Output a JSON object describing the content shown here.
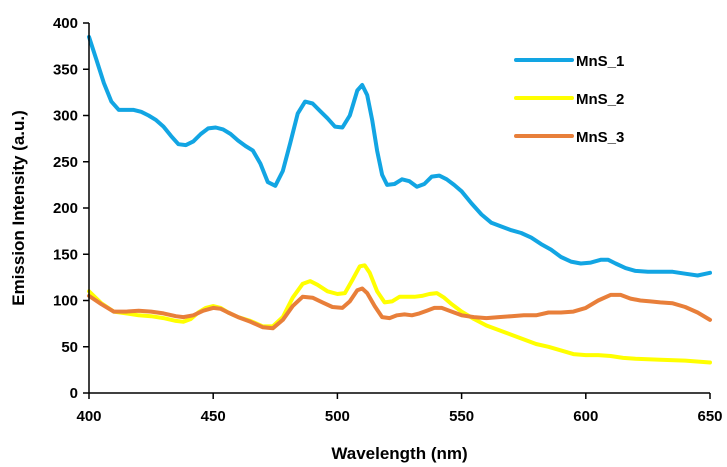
{
  "chart_data": {
    "type": "line",
    "title": "",
    "xlabel": "Wavelength (nm)",
    "ylabel": "Emission Intensity (a.u.)",
    "xlim": [
      400,
      650
    ],
    "ylim": [
      0,
      400
    ],
    "xticks": [
      400,
      450,
      500,
      550,
      600,
      650
    ],
    "yticks": [
      0,
      50,
      100,
      150,
      200,
      250,
      300,
      350,
      400
    ],
    "grid": false,
    "legend_position": "top-right",
    "series": [
      {
        "name": "MnS_1",
        "color": "#12A5E3",
        "points": [
          [
            400,
            385
          ],
          [
            403,
            360
          ],
          [
            406,
            335
          ],
          [
            409,
            315
          ],
          [
            412,
            306
          ],
          [
            415,
            306
          ],
          [
            418,
            306
          ],
          [
            421,
            304
          ],
          [
            424,
            300
          ],
          [
            427,
            295
          ],
          [
            430,
            288
          ],
          [
            433,
            278
          ],
          [
            436,
            269
          ],
          [
            439,
            268
          ],
          [
            442,
            272
          ],
          [
            445,
            280
          ],
          [
            448,
            286
          ],
          [
            451,
            287
          ],
          [
            454,
            285
          ],
          [
            457,
            280
          ],
          [
            460,
            273
          ],
          [
            463,
            267
          ],
          [
            466,
            262
          ],
          [
            469,
            248
          ],
          [
            472,
            228
          ],
          [
            475,
            224
          ],
          [
            478,
            240
          ],
          [
            481,
            270
          ],
          [
            484,
            302
          ],
          [
            487,
            315
          ],
          [
            490,
            313
          ],
          [
            493,
            305
          ],
          [
            496,
            297
          ],
          [
            499,
            288
          ],
          [
            502,
            287
          ],
          [
            505,
            300
          ],
          [
            508,
            327
          ],
          [
            510,
            333
          ],
          [
            512,
            322
          ],
          [
            514,
            295
          ],
          [
            516,
            262
          ],
          [
            518,
            236
          ],
          [
            520,
            225
          ],
          [
            523,
            226
          ],
          [
            526,
            231
          ],
          [
            529,
            229
          ],
          [
            532,
            223
          ],
          [
            535,
            226
          ],
          [
            538,
            234
          ],
          [
            541,
            235
          ],
          [
            544,
            231
          ],
          [
            547,
            225
          ],
          [
            550,
            218
          ],
          [
            554,
            205
          ],
          [
            558,
            193
          ],
          [
            562,
            184
          ],
          [
            566,
            180
          ],
          [
            570,
            176
          ],
          [
            574,
            173
          ],
          [
            578,
            168
          ],
          [
            582,
            161
          ],
          [
            586,
            155
          ],
          [
            590,
            147
          ],
          [
            594,
            142
          ],
          [
            598,
            140
          ],
          [
            602,
            141
          ],
          [
            606,
            144
          ],
          [
            609,
            144
          ],
          [
            612,
            140
          ],
          [
            616,
            135
          ],
          [
            620,
            132
          ],
          [
            625,
            131
          ],
          [
            630,
            131
          ],
          [
            635,
            131
          ],
          [
            640,
            129
          ],
          [
            645,
            127
          ],
          [
            650,
            130
          ]
        ]
      },
      {
        "name": "MnS_2",
        "color": "#FFFF00",
        "points": [
          [
            400,
            110
          ],
          [
            405,
            97
          ],
          [
            410,
            88
          ],
          [
            415,
            86
          ],
          [
            420,
            84
          ],
          [
            425,
            83
          ],
          [
            430,
            81
          ],
          [
            435,
            78
          ],
          [
            438,
            77
          ],
          [
            441,
            80
          ],
          [
            444,
            87
          ],
          [
            447,
            92
          ],
          [
            450,
            94
          ],
          [
            453,
            92
          ],
          [
            456,
            87
          ],
          [
            460,
            82
          ],
          [
            465,
            78
          ],
          [
            470,
            72
          ],
          [
            474,
            72
          ],
          [
            478,
            82
          ],
          [
            482,
            103
          ],
          [
            486,
            118
          ],
          [
            489,
            121
          ],
          [
            492,
            117
          ],
          [
            496,
            110
          ],
          [
            500,
            107
          ],
          [
            503,
            108
          ],
          [
            506,
            122
          ],
          [
            509,
            137
          ],
          [
            511,
            138
          ],
          [
            513,
            130
          ],
          [
            516,
            110
          ],
          [
            519,
            98
          ],
          [
            522,
            99
          ],
          [
            525,
            104
          ],
          [
            528,
            104
          ],
          [
            531,
            104
          ],
          [
            534,
            105
          ],
          [
            537,
            107
          ],
          [
            540,
            108
          ],
          [
            543,
            103
          ],
          [
            546,
            96
          ],
          [
            550,
            88
          ],
          [
            555,
            80
          ],
          [
            560,
            73
          ],
          [
            565,
            68
          ],
          [
            570,
            63
          ],
          [
            575,
            58
          ],
          [
            580,
            53
          ],
          [
            585,
            50
          ],
          [
            590,
            46
          ],
          [
            595,
            42
          ],
          [
            600,
            41
          ],
          [
            605,
            41
          ],
          [
            610,
            40
          ],
          [
            615,
            38
          ],
          [
            620,
            37
          ],
          [
            630,
            36
          ],
          [
            640,
            35
          ],
          [
            650,
            33
          ]
        ]
      },
      {
        "name": "MnS_3",
        "color": "#E87F3A",
        "points": [
          [
            400,
            105
          ],
          [
            405,
            96
          ],
          [
            410,
            88
          ],
          [
            415,
            88
          ],
          [
            420,
            89
          ],
          [
            425,
            88
          ],
          [
            430,
            86
          ],
          [
            435,
            83
          ],
          [
            438,
            82
          ],
          [
            442,
            84
          ],
          [
            446,
            89
          ],
          [
            450,
            92
          ],
          [
            453,
            91
          ],
          [
            456,
            87
          ],
          [
            460,
            82
          ],
          [
            465,
            77
          ],
          [
            470,
            71
          ],
          [
            474,
            70
          ],
          [
            478,
            79
          ],
          [
            482,
            94
          ],
          [
            486,
            104
          ],
          [
            490,
            103
          ],
          [
            494,
            98
          ],
          [
            498,
            93
          ],
          [
            502,
            92
          ],
          [
            505,
            99
          ],
          [
            508,
            111
          ],
          [
            510,
            113
          ],
          [
            512,
            108
          ],
          [
            515,
            94
          ],
          [
            518,
            82
          ],
          [
            521,
            81
          ],
          [
            524,
            84
          ],
          [
            527,
            85
          ],
          [
            530,
            84
          ],
          [
            533,
            86
          ],
          [
            536,
            89
          ],
          [
            539,
            92
          ],
          [
            542,
            92
          ],
          [
            546,
            88
          ],
          [
            550,
            84
          ],
          [
            555,
            82
          ],
          [
            560,
            81
          ],
          [
            565,
            82
          ],
          [
            570,
            83
          ],
          [
            575,
            84
          ],
          [
            580,
            84
          ],
          [
            585,
            87
          ],
          [
            590,
            87
          ],
          [
            595,
            88
          ],
          [
            600,
            92
          ],
          [
            605,
            100
          ],
          [
            610,
            106
          ],
          [
            614,
            106
          ],
          [
            618,
            102
          ],
          [
            622,
            100
          ],
          [
            626,
            99
          ],
          [
            630,
            98
          ],
          [
            635,
            97
          ],
          [
            640,
            93
          ],
          [
            645,
            87
          ],
          [
            650,
            79
          ]
        ]
      }
    ]
  }
}
